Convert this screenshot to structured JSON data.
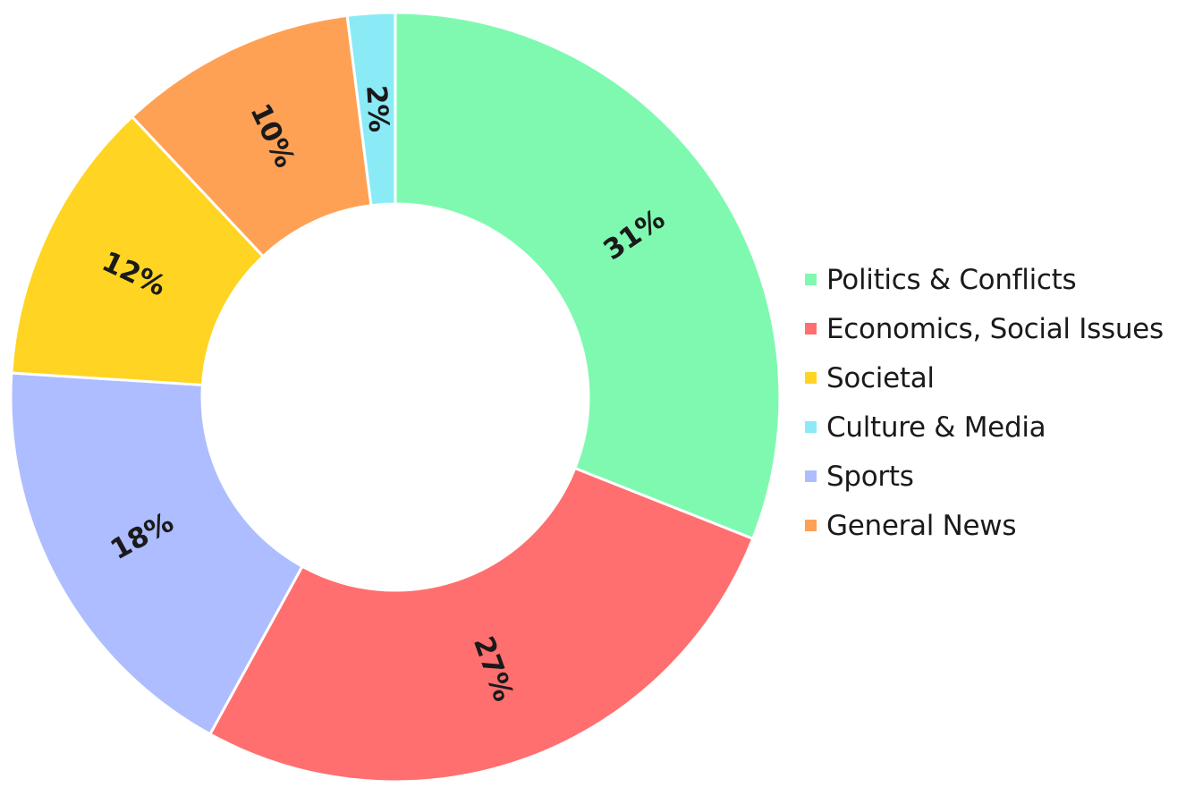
{
  "chart_data": {
    "type": "pie",
    "donut": true,
    "categories": [
      "Politics & Conflicts",
      "Economics, Social Issues",
      "Societal",
      "Culture & Media",
      "Sports",
      "General News"
    ],
    "values": [
      31,
      27,
      12,
      2,
      18,
      10
    ],
    "value_labels": [
      "31%",
      "27%",
      "12%",
      "2%",
      "18%",
      "10%"
    ],
    "slice_order": [
      0,
      1,
      4,
      2,
      5,
      3
    ],
    "colors": [
      "#7ff9b0",
      "#ff6f6f",
      "#ffd422",
      "#8aebf7",
      "#adbdff",
      "#ffa155"
    ],
    "legend_position": "right"
  }
}
